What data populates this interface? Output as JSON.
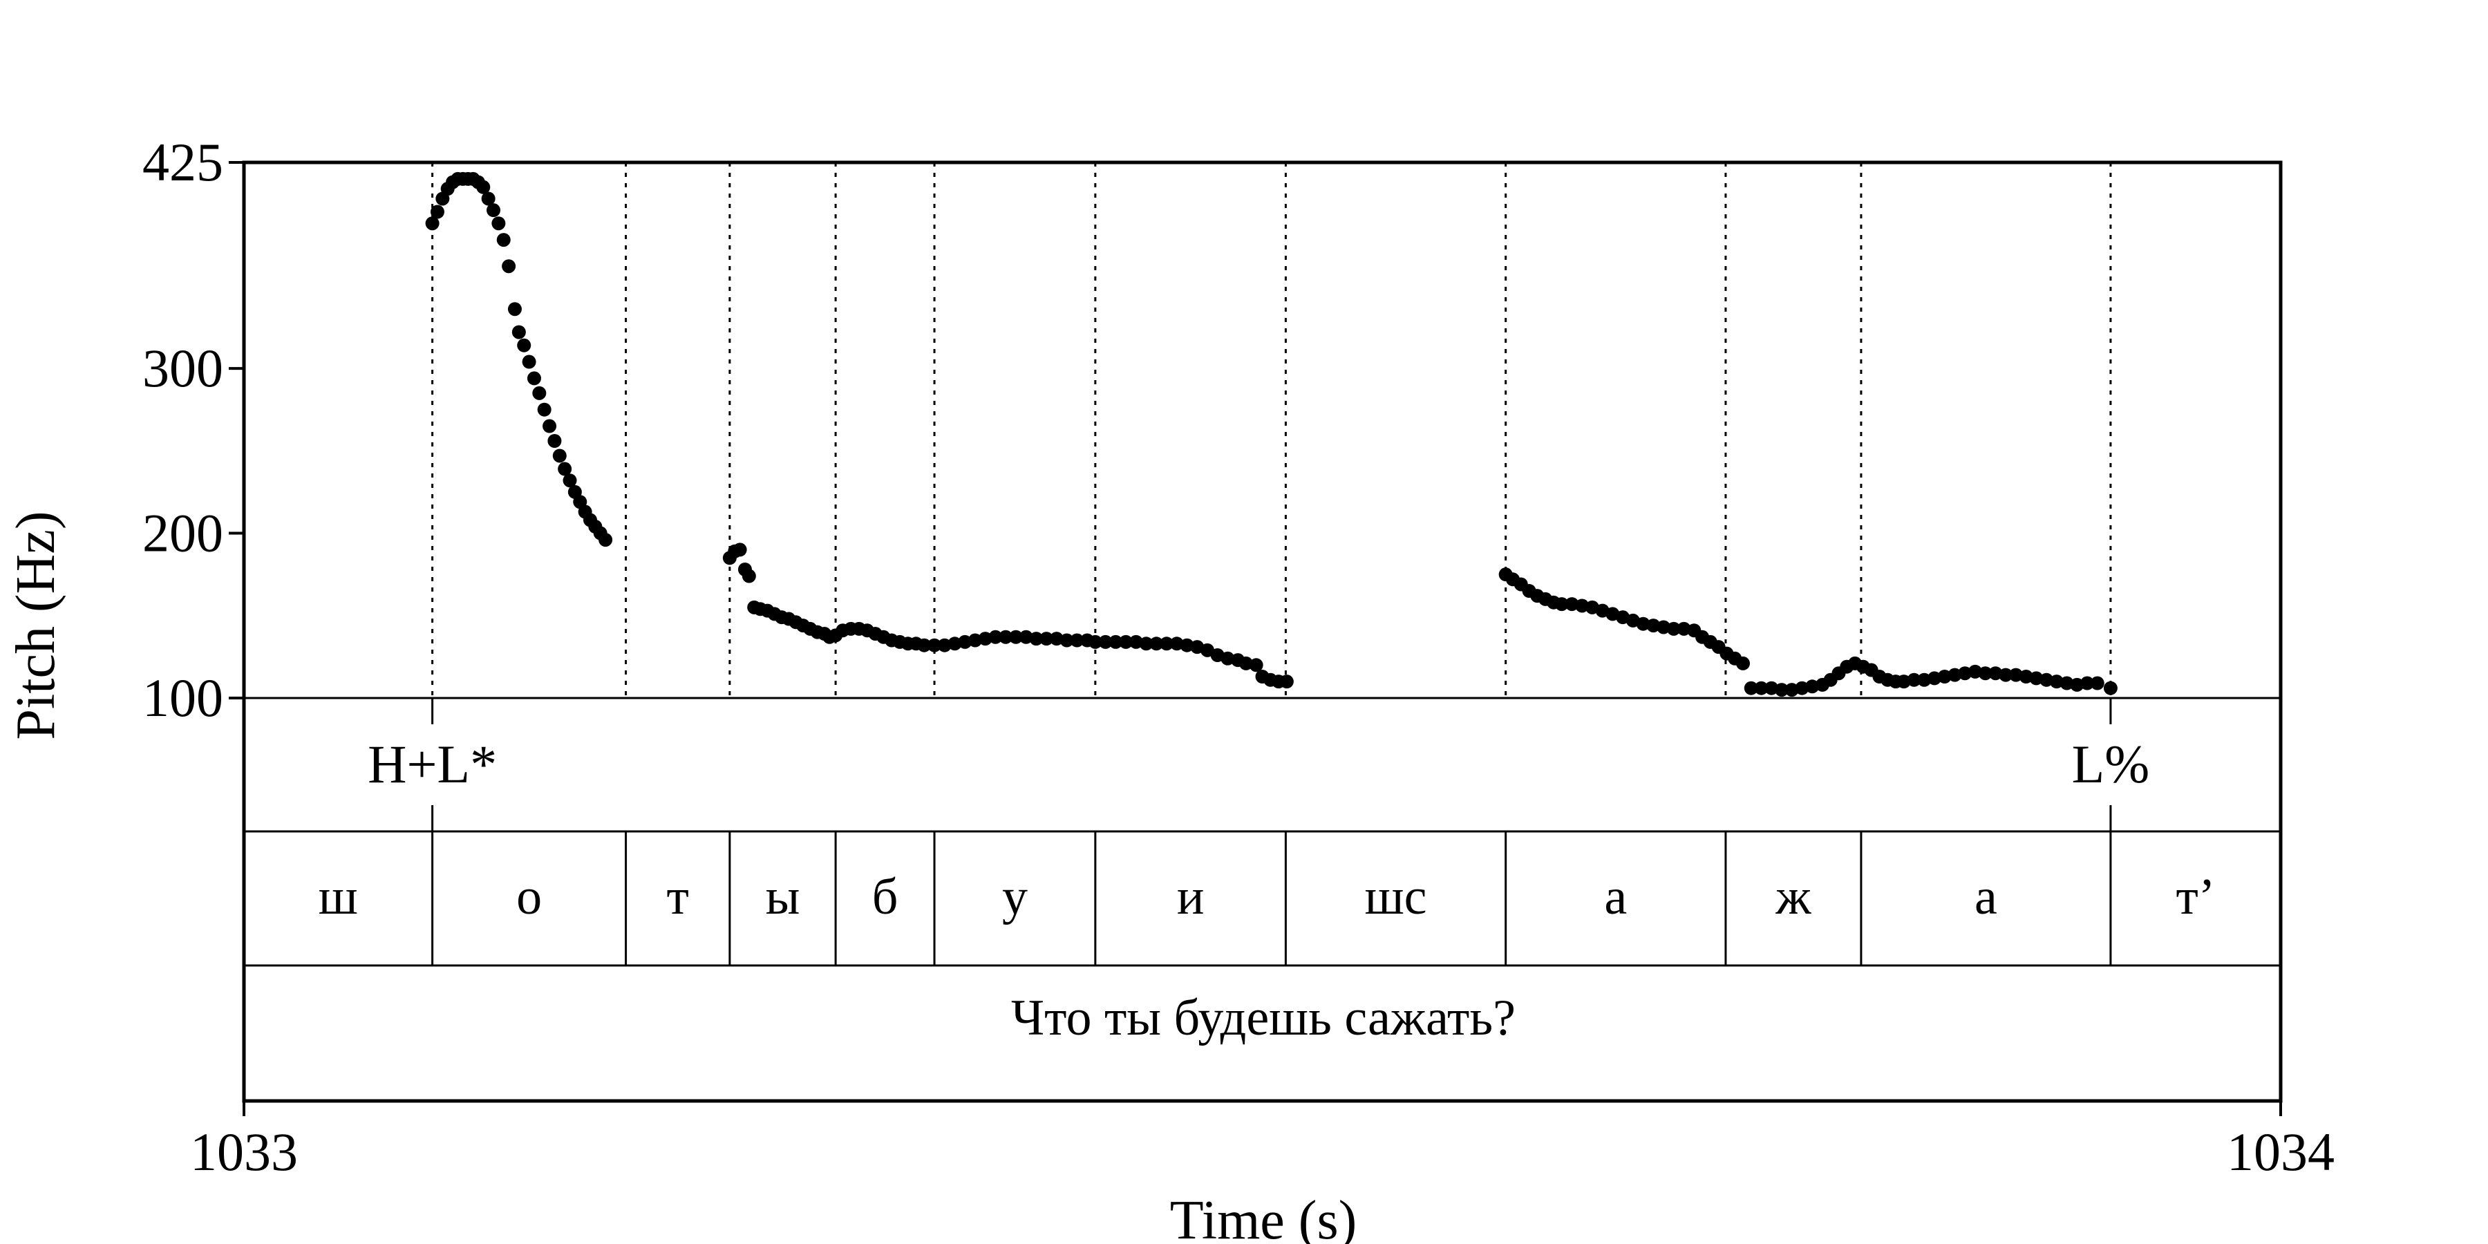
{
  "chart_data": {
    "type": "scatter",
    "xlabel": "Time (s)",
    "ylabel": "Pitch (Hz)",
    "xlim": [
      1033,
      1034
    ],
    "ylim": [
      100,
      425
    ],
    "x_ticks": [
      "1033",
      "1034"
    ],
    "y_ticks": [
      100,
      200,
      300,
      425
    ],
    "grid": false,
    "boundaries": [
      1033.0925,
      1033.1875,
      1033.2385,
      1033.2905,
      1033.339,
      1033.418,
      1033.5115,
      1033.6195,
      1033.7275,
      1033.794,
      1033.9165
    ],
    "tones": [
      {
        "label": "H+L*",
        "time": 1033.0925
      },
      {
        "label": "L%",
        "time": 1033.9165
      }
    ],
    "segments": [
      {
        "label": "ш",
        "start": 1033.0,
        "end": 1033.0925
      },
      {
        "label": "о",
        "start": 1033.0925,
        "end": 1033.1875
      },
      {
        "label": "т",
        "start": 1033.1875,
        "end": 1033.2385
      },
      {
        "label": "ы",
        "start": 1033.2385,
        "end": 1033.2905
      },
      {
        "label": "б",
        "start": 1033.2905,
        "end": 1033.339
      },
      {
        "label": "у",
        "start": 1033.339,
        "end": 1033.418
      },
      {
        "label": "и",
        "start": 1033.418,
        "end": 1033.5115
      },
      {
        "label": "шс",
        "start": 1033.5115,
        "end": 1033.6195
      },
      {
        "label": "а",
        "start": 1033.6195,
        "end": 1033.7275
      },
      {
        "label": "ж",
        "start": 1033.7275,
        "end": 1033.794
      },
      {
        "label": "а",
        "start": 1033.794,
        "end": 1033.9165
      },
      {
        "label": "т’",
        "start": 1033.9165,
        "end": 1034.0
      }
    ],
    "sentence": "Что ты будешь сажать?",
    "series": [
      {
        "points": [
          [
            1033.0925,
            388
          ],
          [
            1033.095,
            395
          ],
          [
            1033.0975,
            403
          ],
          [
            1033.1,
            409
          ],
          [
            1033.1025,
            413
          ],
          [
            1033.105,
            415
          ],
          [
            1033.1075,
            415
          ],
          [
            1033.11,
            415
          ],
          [
            1033.1125,
            415
          ],
          [
            1033.115,
            413
          ],
          [
            1033.1175,
            410
          ],
          [
            1033.12,
            403
          ],
          [
            1033.1225,
            396
          ],
          [
            1033.125,
            388
          ],
          [
            1033.1275,
            378
          ],
          [
            1033.13,
            362
          ],
          [
            1033.133,
            336
          ],
          [
            1033.135,
            322
          ],
          [
            1033.1375,
            314
          ],
          [
            1033.14,
            304
          ],
          [
            1033.1425,
            294
          ],
          [
            1033.145,
            285
          ],
          [
            1033.1475,
            275
          ],
          [
            1033.15,
            265
          ],
          [
            1033.1525,
            256
          ],
          [
            1033.155,
            247
          ],
          [
            1033.1575,
            239
          ],
          [
            1033.16,
            232
          ],
          [
            1033.1625,
            225
          ],
          [
            1033.165,
            219
          ],
          [
            1033.1675,
            213
          ],
          [
            1033.17,
            208
          ],
          [
            1033.1725,
            204
          ],
          [
            1033.175,
            200
          ],
          [
            1033.1775,
            196
          ],
          [
            1033.2385,
            185
          ],
          [
            1033.241,
            189
          ],
          [
            1033.2435,
            190
          ],
          [
            1033.246,
            178
          ],
          [
            1033.248,
            174
          ],
          [
            1033.2505,
            155
          ],
          [
            1033.2535,
            154
          ],
          [
            1033.257,
            153
          ],
          [
            1033.2605,
            151
          ],
          [
            1033.264,
            149
          ],
          [
            1033.2675,
            148
          ],
          [
            1033.271,
            146
          ],
          [
            1033.2745,
            144
          ],
          [
            1033.278,
            142
          ],
          [
            1033.2815,
            140
          ],
          [
            1033.285,
            139
          ],
          [
            1033.2875,
            137
          ],
          [
            1033.2905,
            138
          ],
          [
            1033.294,
            141
          ],
          [
            1033.298,
            142
          ],
          [
            1033.302,
            142
          ],
          [
            1033.306,
            141
          ],
          [
            1033.31,
            139
          ],
          [
            1033.314,
            137
          ],
          [
            1033.318,
            135
          ],
          [
            1033.322,
            134
          ],
          [
            1033.326,
            133
          ],
          [
            1033.33,
            133
          ],
          [
            1033.334,
            132
          ],
          [
            1033.339,
            132
          ],
          [
            1033.344,
            132
          ],
          [
            1033.349,
            133
          ],
          [
            1033.354,
            134
          ],
          [
            1033.359,
            135
          ],
          [
            1033.364,
            136
          ],
          [
            1033.369,
            137
          ],
          [
            1033.374,
            137
          ],
          [
            1033.379,
            137
          ],
          [
            1033.384,
            137
          ],
          [
            1033.389,
            136
          ],
          [
            1033.394,
            136
          ],
          [
            1033.399,
            136
          ],
          [
            1033.404,
            135
          ],
          [
            1033.409,
            135
          ],
          [
            1033.414,
            135
          ],
          [
            1033.418,
            134
          ],
          [
            1033.423,
            134
          ],
          [
            1033.428,
            134
          ],
          [
            1033.433,
            134
          ],
          [
            1033.438,
            134
          ],
          [
            1033.443,
            133
          ],
          [
            1033.448,
            133
          ],
          [
            1033.453,
            133
          ],
          [
            1033.458,
            133
          ],
          [
            1033.463,
            132
          ],
          [
            1033.468,
            131
          ],
          [
            1033.473,
            129
          ],
          [
            1033.478,
            126
          ],
          [
            1033.483,
            124
          ],
          [
            1033.488,
            123
          ],
          [
            1033.492,
            121
          ],
          [
            1033.497,
            120
          ],
          [
            1033.5,
            113
          ],
          [
            1033.504,
            111
          ],
          [
            1033.508,
            110
          ],
          [
            1033.512,
            110
          ],
          [
            1033.6195,
            175
          ],
          [
            1033.623,
            172
          ],
          [
            1033.627,
            169
          ],
          [
            1033.631,
            165
          ],
          [
            1033.635,
            162
          ],
          [
            1033.639,
            160
          ],
          [
            1033.643,
            158
          ],
          [
            1033.647,
            157
          ],
          [
            1033.652,
            157
          ],
          [
            1033.657,
            156
          ],
          [
            1033.662,
            155
          ],
          [
            1033.667,
            153
          ],
          [
            1033.672,
            151
          ],
          [
            1033.677,
            149
          ],
          [
            1033.682,
            147
          ],
          [
            1033.687,
            145
          ],
          [
            1033.692,
            144
          ],
          [
            1033.697,
            143
          ],
          [
            1033.702,
            142
          ],
          [
            1033.707,
            142
          ],
          [
            1033.712,
            141
          ],
          [
            1033.716,
            137
          ],
          [
            1033.72,
            134
          ],
          [
            1033.724,
            131
          ],
          [
            1033.728,
            127
          ],
          [
            1033.732,
            124
          ],
          [
            1033.736,
            121
          ],
          [
            1033.74,
            106
          ],
          [
            1033.745,
            106
          ],
          [
            1033.75,
            106
          ],
          [
            1033.755,
            105
          ],
          [
            1033.76,
            105
          ],
          [
            1033.765,
            106
          ],
          [
            1033.77,
            107
          ],
          [
            1033.775,
            108
          ],
          [
            1033.779,
            111
          ],
          [
            1033.783,
            115
          ],
          [
            1033.787,
            119
          ],
          [
            1033.791,
            121
          ],
          [
            1033.795,
            119
          ],
          [
            1033.799,
            117
          ],
          [
            1033.803,
            113
          ],
          [
            1033.807,
            111
          ],
          [
            1033.811,
            110
          ],
          [
            1033.815,
            110
          ],
          [
            1033.82,
            111
          ],
          [
            1033.825,
            111
          ],
          [
            1033.83,
            112
          ],
          [
            1033.835,
            113
          ],
          [
            1033.84,
            114
          ],
          [
            1033.845,
            115
          ],
          [
            1033.85,
            116
          ],
          [
            1033.855,
            115
          ],
          [
            1033.86,
            115
          ],
          [
            1033.865,
            114
          ],
          [
            1033.87,
            114
          ],
          [
            1033.875,
            113
          ],
          [
            1033.88,
            112
          ],
          [
            1033.885,
            111
          ],
          [
            1033.89,
            110
          ],
          [
            1033.895,
            109
          ],
          [
            1033.9,
            108
          ],
          [
            1033.905,
            109
          ],
          [
            1033.91,
            109
          ],
          [
            1033.9165,
            106
          ]
        ]
      }
    ]
  }
}
